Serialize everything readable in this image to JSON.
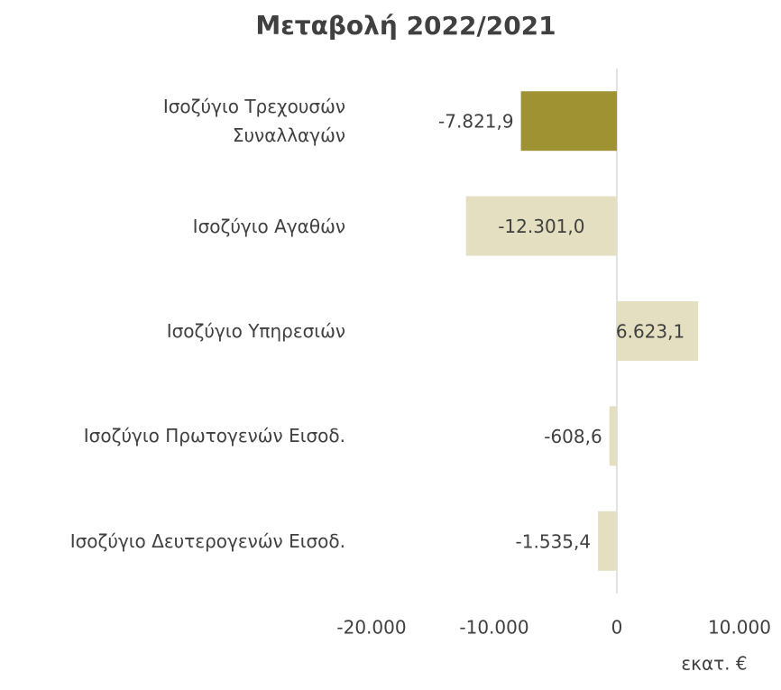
{
  "chart_data": {
    "type": "bar",
    "orientation": "horizontal",
    "title": "Μεταβολή 2022/2021",
    "categories": [
      "Ισοζύγιο Τρεχουσών\nΣυναλλαγών",
      "Ισοζύγιο Αγαθών",
      "Ισοζύγιο Υπηρεσιών",
      "Ισοζύγιο Πρωτογενών Εισοδ.",
      "Ισοζύγιο Δευτερογενών Εισοδ."
    ],
    "values": [
      -7821.9,
      -12301.0,
      6623.1,
      -608.6,
      -1535.4
    ],
    "value_labels": [
      "-7.821,9",
      "-12.301,0",
      "6.623,1",
      "-608,6",
      "-1.535,4"
    ],
    "colors": [
      "#9e9232",
      "#e3dfc0",
      "#e3dfc0",
      "#e3dfc0",
      "#e3dfc0"
    ],
    "xlim": [
      -20000,
      10000
    ],
    "xticks": [
      {
        "value": -20000,
        "label": "-20.000"
      },
      {
        "value": -10000,
        "label": "-10.000"
      },
      0,
      {
        "value": 10000,
        "label": "10.000"
      }
    ],
    "xlabel": "εκατ. €"
  }
}
